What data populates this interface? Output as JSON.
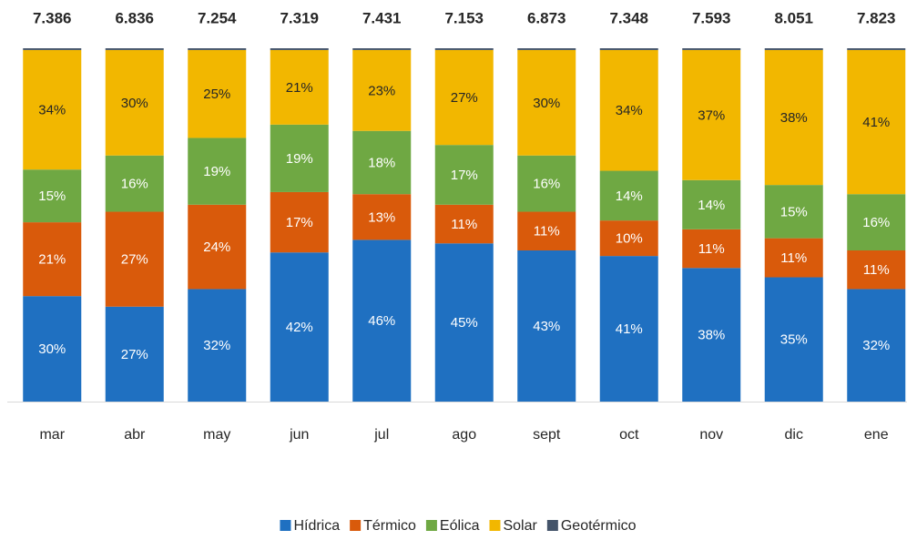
{
  "chart_data": {
    "type": "stacked_bar_percent",
    "categories": [
      "mar",
      "abr",
      "may",
      "jun",
      "jul",
      "ago",
      "sept",
      "oct",
      "nov",
      "dic",
      "ene"
    ],
    "totals": [
      7.386,
      6.836,
      7.254,
      7.319,
      7.431,
      7.153,
      6.873,
      7.348,
      7.593,
      8.051,
      7.823
    ],
    "series": [
      {
        "name": "Hídrica",
        "color": "#1f70c1",
        "values": [
          30,
          27,
          32,
          42,
          46,
          45,
          43,
          41,
          38,
          35,
          32
        ],
        "value_labels": [
          "30%",
          "27%",
          "32%",
          "42%",
          "46%",
          "45%",
          "43%",
          "41%",
          "38%",
          "35%",
          "32%"
        ]
      },
      {
        "name": "Térmico",
        "color": "#d95a0b",
        "values": [
          21,
          27,
          24,
          17,
          13,
          11,
          11,
          10,
          11,
          11,
          11
        ],
        "value_labels": [
          "21%",
          "27%",
          "24%",
          "17%",
          "13%",
          "11%",
          "11%",
          "10%",
          "11%",
          "11%",
          "11%"
        ]
      },
      {
        "name": "Eólica",
        "color": "#6fa843",
        "values": [
          15,
          16,
          19,
          19,
          18,
          17,
          16,
          14,
          14,
          15,
          16
        ],
        "value_labels": [
          "15%",
          "16%",
          "19%",
          "19%",
          "18%",
          "17%",
          "16%",
          "14%",
          "14%",
          "15%",
          "16%"
        ]
      },
      {
        "name": "Solar",
        "color": "#f2b700",
        "values": [
          34,
          30,
          25,
          21,
          23,
          27,
          30,
          34,
          37,
          38,
          41
        ],
        "value_labels": [
          "34%",
          "30%",
          "25%",
          "21%",
          "23%",
          "27%",
          "30%",
          "34%",
          "37%",
          "38%",
          "41%"
        ]
      },
      {
        "name": "Geotérmico",
        "color": "#44546a",
        "values": [
          0.5,
          0.5,
          0.5,
          0.5,
          0.5,
          0.5,
          0.5,
          0.5,
          0.5,
          0.5,
          0.5
        ]
      }
    ]
  }
}
